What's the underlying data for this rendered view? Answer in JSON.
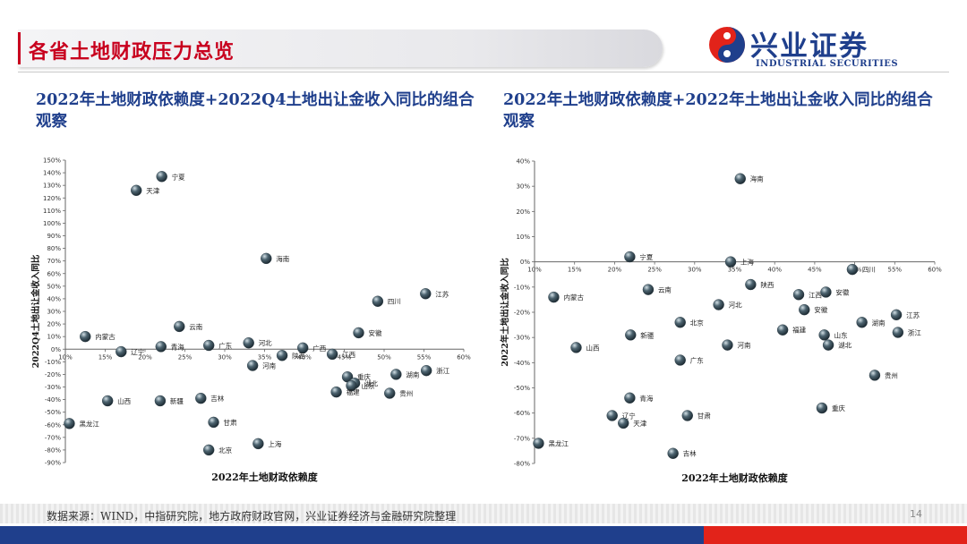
{
  "header": {
    "title": "各省土地财政压力总览",
    "logo_cn": "兴业证券",
    "logo_en": "INDUSTRIAL SECURITIES"
  },
  "colors": {
    "title_red": "#c8001e",
    "brand_blue": "#1f3f8c",
    "brand_red": "#e2231a",
    "marker": "#4d6470"
  },
  "footer": {
    "source": "数据来源：WIND，中指研究院，地方政府财政官网，兴业证券经济与金融研究院整理",
    "page_number": "14"
  },
  "chart_data": [
    {
      "type": "scatter",
      "title": "2022年土地财政依赖度+2022Q4土地出让金收入同比的组合观察",
      "xlabel": "2022年土地财政依赖度",
      "ylabel": "2022Q4土地出让金收入同比",
      "xlim": [
        10,
        60
      ],
      "ylim": [
        -90,
        150
      ],
      "x_ticks": [
        "10%",
        "15%",
        "20%",
        "25%",
        "30%",
        "35%",
        "40%",
        "45%",
        "50%",
        "55%",
        "60%"
      ],
      "y_ticks": [
        "150%",
        "140%",
        "130%",
        "120%",
        "110%",
        "100%",
        "90%",
        "80%",
        "70%",
        "60%",
        "50%",
        "40%",
        "30%",
        "20%",
        "10%",
        "0%",
        "-10%",
        "-20%",
        "-30%",
        "-40%",
        "-50%",
        "-60%",
        "-70%",
        "-80%",
        "-90%"
      ],
      "points": [
        {
          "label": "宁夏",
          "x": 22.1,
          "y": 137
        },
        {
          "label": "天津",
          "x": 18.9,
          "y": 126
        },
        {
          "label": "海南",
          "x": 35.2,
          "y": 72
        },
        {
          "label": "江苏",
          "x": 55.2,
          "y": 44
        },
        {
          "label": "四川",
          "x": 49.2,
          "y": 38
        },
        {
          "label": "云南",
          "x": 24.3,
          "y": 18
        },
        {
          "label": "内蒙古",
          "x": 12.5,
          "y": 10
        },
        {
          "label": "安徽",
          "x": 46.8,
          "y": 13
        },
        {
          "label": "辽宁",
          "x": 17.0,
          "y": -2
        },
        {
          "label": "青海",
          "x": 22.0,
          "y": 2
        },
        {
          "label": "广东",
          "x": 28.0,
          "y": 3
        },
        {
          "label": "河北",
          "x": 33.0,
          "y": 5
        },
        {
          "label": "广西",
          "x": 39.8,
          "y": 1
        },
        {
          "label": "江西",
          "x": 43.5,
          "y": -4
        },
        {
          "label": "陕西",
          "x": 37.2,
          "y": -5
        },
        {
          "label": "河南",
          "x": 33.5,
          "y": -13
        },
        {
          "label": "重庆",
          "x": 45.4,
          "y": -22
        },
        {
          "label": "湖北",
          "x": 46.3,
          "y": -27
        },
        {
          "label": "湖南",
          "x": 51.5,
          "y": -20
        },
        {
          "label": "浙江",
          "x": 55.3,
          "y": -17
        },
        {
          "label": "山东",
          "x": 45.9,
          "y": -29
        },
        {
          "label": "福建",
          "x": 44.0,
          "y": -34
        },
        {
          "label": "贵州",
          "x": 50.7,
          "y": -35
        },
        {
          "label": "山西",
          "x": 15.3,
          "y": -41
        },
        {
          "label": "新疆",
          "x": 21.9,
          "y": -41
        },
        {
          "label": "吉林",
          "x": 27.0,
          "y": -39
        },
        {
          "label": "黑龙江",
          "x": 10.5,
          "y": -59
        },
        {
          "label": "甘肃",
          "x": 28.6,
          "y": -58
        },
        {
          "label": "北京",
          "x": 28.0,
          "y": -80
        },
        {
          "label": "上海",
          "x": 34.2,
          "y": -75
        }
      ]
    },
    {
      "type": "scatter",
      "title": "2022年土地财政依赖度+2022年土地出让金收入同比的组合观察",
      "xlabel": "2022年土地财政依赖度",
      "ylabel": "2022年土地出让金收入同比",
      "xlim": [
        10,
        60
      ],
      "ylim": [
        -80,
        40
      ],
      "x_ticks": [
        "10%",
        "15%",
        "20%",
        "25%",
        "30%",
        "35%",
        "40%",
        "45%",
        "50%",
        "55%",
        "60%"
      ],
      "y_ticks": [
        "40%",
        "30%",
        "20%",
        "10%",
        "0%",
        "-10%",
        "-20%",
        "-30%",
        "-40%",
        "-50%",
        "-60%",
        "-70%",
        "-80%"
      ],
      "points": [
        {
          "label": "海南",
          "x": 35.7,
          "y": 33
        },
        {
          "label": "宁夏",
          "x": 21.9,
          "y": 2
        },
        {
          "label": "上海",
          "x": 34.5,
          "y": 0
        },
        {
          "label": "四川",
          "x": 49.7,
          "y": -3
        },
        {
          "label": "陕西",
          "x": 37.0,
          "y": -9
        },
        {
          "label": "江西",
          "x": 43.0,
          "y": -13
        },
        {
          "label": "安徽",
          "x": 46.4,
          "y": -12
        },
        {
          "label": "云南",
          "x": 24.2,
          "y": -11
        },
        {
          "label": "内蒙古",
          "x": 12.4,
          "y": -14
        },
        {
          "label": "河北",
          "x": 33.0,
          "y": -17
        },
        {
          "label": "江苏",
          "x": 55.2,
          "y": -21
        },
        {
          "label": "安徽",
          "x": 43.7,
          "y": -19
        },
        {
          "label": "北京",
          "x": 28.2,
          "y": -24
        },
        {
          "label": "福建",
          "x": 41.0,
          "y": -27
        },
        {
          "label": "新疆",
          "x": 22.0,
          "y": -29
        },
        {
          "label": "山东",
          "x": 46.2,
          "y": -29
        },
        {
          "label": "湖南",
          "x": 50.9,
          "y": -24
        },
        {
          "label": "浙江",
          "x": 55.4,
          "y": -28
        },
        {
          "label": "河南",
          "x": 34.1,
          "y": -33
        },
        {
          "label": "湖北",
          "x": 46.7,
          "y": -33
        },
        {
          "label": "山西",
          "x": 15.2,
          "y": -34
        },
        {
          "label": "广东",
          "x": 28.2,
          "y": -39
        },
        {
          "label": "贵州",
          "x": 52.5,
          "y": -45
        },
        {
          "label": "青海",
          "x": 21.9,
          "y": -54
        },
        {
          "label": "重庆",
          "x": 45.9,
          "y": -58
        },
        {
          "label": "辽宁",
          "x": 19.7,
          "y": -61
        },
        {
          "label": "甘肃",
          "x": 29.1,
          "y": -61
        },
        {
          "label": "天津",
          "x": 21.1,
          "y": -64
        },
        {
          "label": "黑龙江",
          "x": 10.5,
          "y": -72
        },
        {
          "label": "吉林",
          "x": 27.3,
          "y": -76
        }
      ]
    }
  ]
}
